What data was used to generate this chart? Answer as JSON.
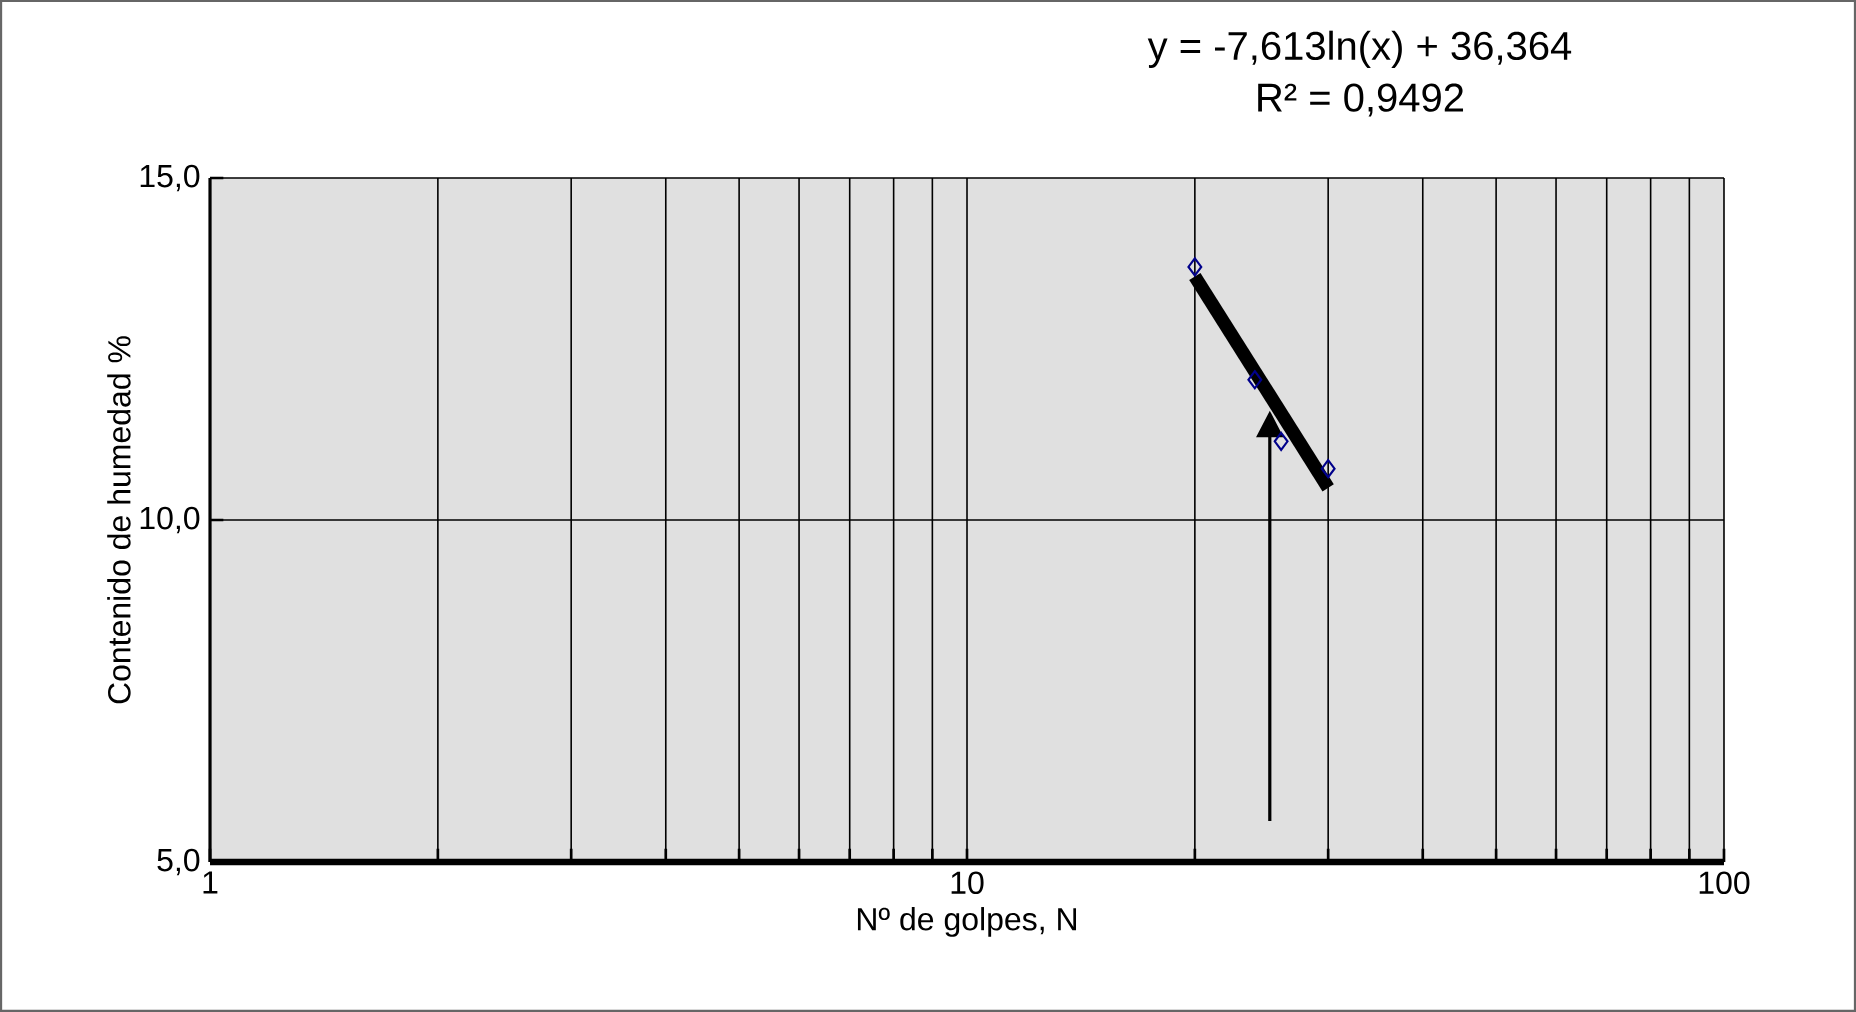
{
  "chart_data": {
    "type": "scatter",
    "xlabel": "Nº de golpes, N",
    "ylabel": "Contenido  de humedad %",
    "log": "x",
    "grid": true,
    "marker": "diamond",
    "xlim": [
      1,
      100
    ],
    "ylim": [
      5,
      15
    ],
    "xticks": [
      1,
      {
        "value": 2,
        "label": null
      },
      {
        "value": 3,
        "label": null
      },
      {
        "value": 4,
        "label": null
      },
      {
        "value": 5,
        "label": null
      },
      {
        "value": 6,
        "label": null
      },
      {
        "value": 7,
        "label": null
      },
      {
        "value": 8,
        "label": null
      },
      {
        "value": 9,
        "label": null
      },
      10,
      {
        "value": 20,
        "label": null
      },
      {
        "value": 30,
        "label": null
      },
      {
        "value": 40,
        "label": null
      },
      {
        "value": 50,
        "label": null
      },
      {
        "value": 60,
        "label": null
      },
      {
        "value": 70,
        "label": null
      },
      {
        "value": 80,
        "label": null
      },
      {
        "value": 90,
        "label": null
      },
      100
    ],
    "yticks": [
      {
        "value": 5,
        "label": "5,0"
      },
      {
        "value": 10,
        "label": "10,0"
      },
      {
        "value": 15,
        "label": "15,0"
      }
    ],
    "annotations": [
      "y = -7,613ln(x) + 36,364",
      "R² = 0,9492"
    ],
    "series": [
      {
        "color": "#00008b",
        "x": [
          20,
          24,
          26,
          30
        ],
        "values": [
          13.7,
          12.05,
          11.15,
          10.75
        ]
      },
      {
        "type": "line",
        "color": "#000000",
        "marker": "none",
        "x": [
          20,
          30
        ],
        "values": [
          13.56,
          10.47
        ]
      }
    ]
  }
}
